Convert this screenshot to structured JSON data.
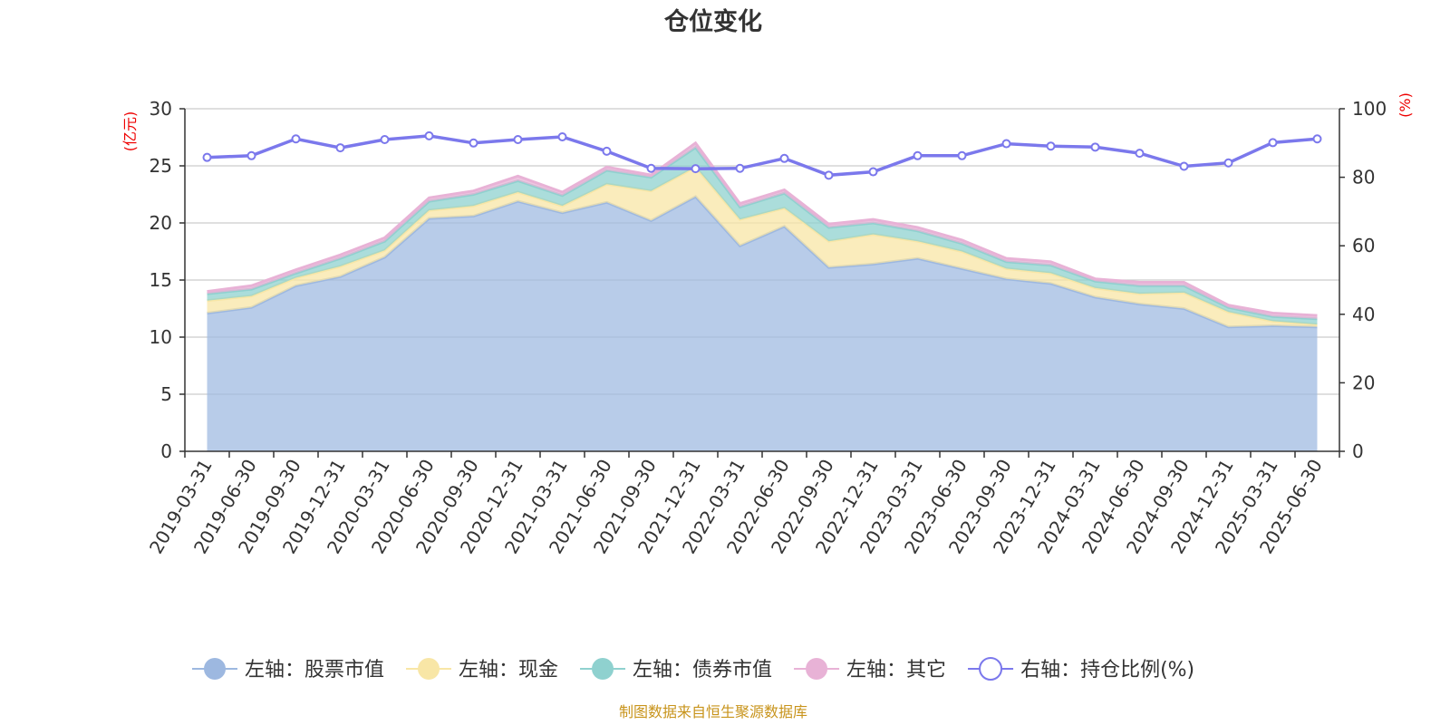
{
  "chart_data": {
    "type": "area",
    "title": "仓位变化",
    "left_unit": "(亿元)",
    "right_unit": "(%)",
    "categories": [
      "2019-03-31",
      "2019-06-30",
      "2019-09-30",
      "2019-12-31",
      "2020-03-31",
      "2020-06-30",
      "2020-09-30",
      "2020-12-31",
      "2021-03-31",
      "2021-06-30",
      "2021-09-30",
      "2021-12-31",
      "2022-03-31",
      "2022-06-30",
      "2022-09-30",
      "2022-12-31",
      "2023-03-31",
      "2023-06-30",
      "2023-09-30",
      "2023-12-31",
      "2024-03-31",
      "2024-06-30",
      "2024-09-30",
      "2024-12-31",
      "2025-03-31",
      "2025-06-30"
    ],
    "left_axis": {
      "min": 0,
      "max": 30,
      "ticks": [
        0,
        5,
        10,
        15,
        20,
        25,
        30
      ]
    },
    "right_axis": {
      "min": 0,
      "max": 100,
      "ticks": [
        0,
        20,
        40,
        60,
        80,
        100
      ]
    },
    "stacked": true,
    "series": [
      {
        "name": "左轴：股票市值",
        "axis": "left",
        "color": "#9db8e0",
        "values": [
          12.1,
          12.6,
          14.5,
          15.3,
          17.0,
          20.4,
          20.6,
          21.9,
          20.9,
          21.8,
          20.2,
          22.3,
          18.0,
          19.7,
          16.1,
          16.4,
          16.9,
          16.0,
          15.1,
          14.7,
          13.5,
          12.9,
          12.5,
          10.9,
          11.0,
          10.9
        ]
      },
      {
        "name": "左轴：现金",
        "axis": "left",
        "color": "#f8e6a6",
        "values": [
          1.1,
          1.0,
          0.7,
          0.9,
          0.6,
          0.7,
          0.9,
          0.8,
          0.6,
          1.6,
          2.6,
          2.6,
          2.3,
          1.6,
          2.3,
          2.6,
          1.5,
          1.5,
          0.9,
          0.9,
          0.8,
          0.9,
          1.4,
          1.3,
          0.4,
          0.2
        ]
      },
      {
        "name": "左轴：债券市值",
        "axis": "left",
        "color": "#8fd1cf",
        "values": [
          0.6,
          0.6,
          0.4,
          0.7,
          0.8,
          0.8,
          1.0,
          1.0,
          0.9,
          1.2,
          1.2,
          1.7,
          1.1,
          1.3,
          1.2,
          1.0,
          0.9,
          0.7,
          0.6,
          0.7,
          0.6,
          0.7,
          0.6,
          0.4,
          0.4,
          0.5
        ]
      },
      {
        "name": "左轴：其它",
        "axis": "left",
        "color": "#e8b2d6",
        "values": [
          0.2,
          0.3,
          0.3,
          0.3,
          0.3,
          0.3,
          0.3,
          0.4,
          0.3,
          0.3,
          0.2,
          0.4,
          0.3,
          0.3,
          0.3,
          0.3,
          0.3,
          0.3,
          0.3,
          0.3,
          0.2,
          0.3,
          0.3,
          0.2,
          0.3,
          0.3
        ]
      },
      {
        "name": "右轴：持仓比例(%)",
        "axis": "right",
        "type": "line",
        "color": "#7b78ec",
        "values": [
          85.8,
          86.3,
          91.2,
          88.6,
          91.0,
          92.1,
          90.0,
          91.0,
          91.8,
          87.6,
          82.6,
          82.5,
          82.6,
          85.5,
          80.6,
          81.6,
          86.3,
          86.3,
          89.8,
          89.1,
          88.8,
          87.0,
          83.2,
          84.2,
          90.1,
          91.2
        ]
      }
    ],
    "legend_position": "bottom",
    "grid": true,
    "source": "制图数据来自恒生聚源数据库"
  }
}
